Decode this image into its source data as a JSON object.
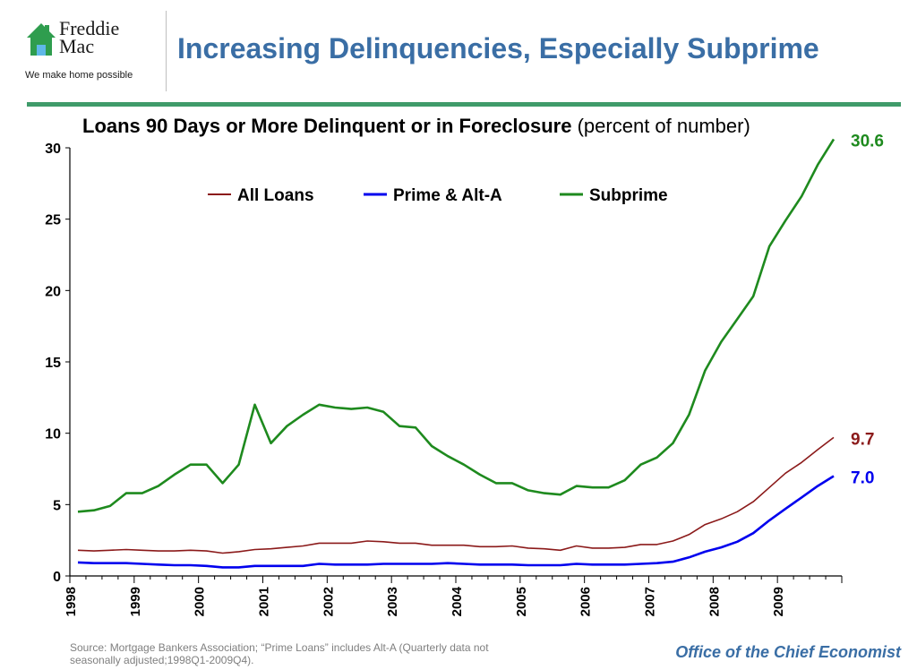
{
  "header": {
    "logo_line1": "Freddie",
    "logo_line2": "Mac",
    "logo_tagline": "We make home possible",
    "title": "Increasing Delinquencies, Especially Subprime"
  },
  "chart_data": {
    "type": "line",
    "title": "Loans 90 Days or More Delinquent or in Foreclosure",
    "subtitle": "(percent of number)",
    "xlabel": "",
    "ylabel": "",
    "ylim": [
      0,
      30
    ],
    "yticks": [
      0,
      5,
      10,
      15,
      20,
      25,
      30
    ],
    "x_tick_labels": [
      "1998",
      "1999",
      "2000",
      "2001",
      "2002",
      "2003",
      "2004",
      "2005",
      "2006",
      "2007",
      "2008",
      "2009"
    ],
    "grid": false,
    "legend_position": "top-left",
    "x_start_label": "1998Q1",
    "series": [
      {
        "name": "All Loans",
        "color": "#8b1a1a",
        "end_label": "9.7",
        "values": [
          1.8,
          1.75,
          1.8,
          1.85,
          1.8,
          1.75,
          1.75,
          1.8,
          1.75,
          1.6,
          1.7,
          1.85,
          1.9,
          2.0,
          2.1,
          2.3,
          2.3,
          2.3,
          2.45,
          2.4,
          2.3,
          2.3,
          2.15,
          2.15,
          2.15,
          2.05,
          2.05,
          2.1,
          1.95,
          1.9,
          1.8,
          2.1,
          1.95,
          1.95,
          2.0,
          2.2,
          2.2,
          2.45,
          2.9,
          3.6,
          4.0,
          4.5,
          5.2,
          6.2,
          7.2,
          7.95,
          8.85,
          9.7
        ]
      },
      {
        "name": "Prime & Alt-A",
        "color": "#0000ee",
        "end_label": "7.0",
        "values": [
          0.95,
          0.9,
          0.9,
          0.9,
          0.85,
          0.8,
          0.75,
          0.75,
          0.7,
          0.6,
          0.6,
          0.7,
          0.7,
          0.7,
          0.7,
          0.85,
          0.8,
          0.8,
          0.8,
          0.85,
          0.85,
          0.85,
          0.85,
          0.9,
          0.85,
          0.8,
          0.8,
          0.8,
          0.75,
          0.75,
          0.75,
          0.85,
          0.8,
          0.8,
          0.8,
          0.85,
          0.9,
          1.0,
          1.3,
          1.7,
          2.0,
          2.4,
          3.0,
          3.9,
          4.7,
          5.5,
          6.3,
          7.0
        ]
      },
      {
        "name": "Subprime",
        "color": "#1e8a1e",
        "end_label": "30.6",
        "values": [
          4.5,
          4.6,
          4.9,
          5.8,
          5.8,
          6.3,
          7.1,
          7.8,
          7.8,
          6.5,
          7.8,
          12.0,
          9.3,
          10.5,
          11.3,
          12.0,
          11.8,
          11.7,
          11.8,
          11.5,
          10.5,
          10.4,
          9.1,
          8.4,
          7.8,
          7.1,
          6.5,
          6.5,
          6.0,
          5.8,
          5.7,
          6.3,
          6.2,
          6.2,
          6.7,
          7.8,
          8.3,
          9.3,
          11.3,
          14.4,
          16.4,
          18.0,
          19.6,
          23.1,
          24.9,
          26.6,
          28.8,
          30.6
        ]
      }
    ]
  },
  "footer": {
    "source": "Source: Mortgage Bankers Association; “Prime Loans” includes Alt-A (Quarterly data not seasonally adjusted;1998Q1-2009Q4).",
    "office": "Office of the Chief Economist"
  }
}
